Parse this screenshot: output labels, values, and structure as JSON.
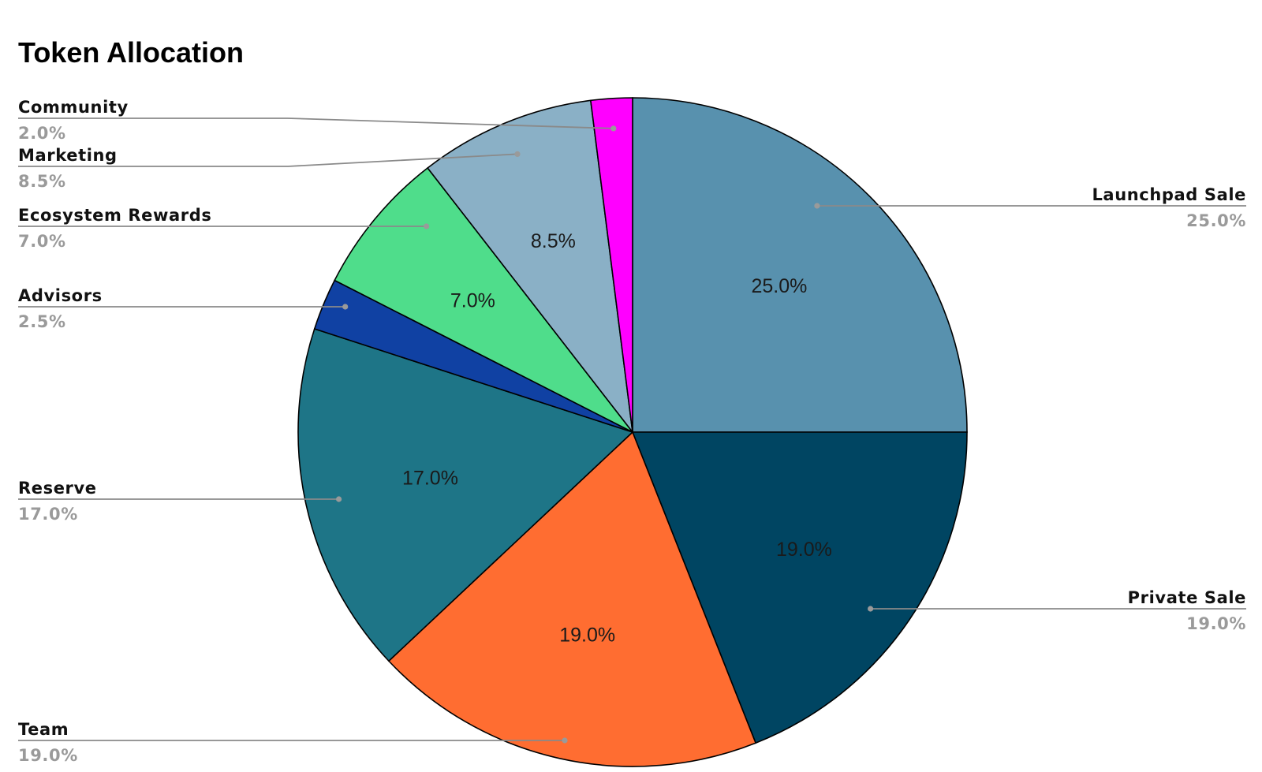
{
  "chart_data": {
    "type": "pie",
    "title": "Token Allocation",
    "slices": [
      {
        "label": "Launchpad Sale",
        "value": 25.0,
        "value_label": "25.0%",
        "color": "#5891ae",
        "inside_label": "25.0%",
        "legend_side": "right"
      },
      {
        "label": "Private Sale",
        "value": 19.0,
        "value_label": "19.0%",
        "color": "#004562",
        "inside_label": "19.0%",
        "legend_side": "right"
      },
      {
        "label": "Team",
        "value": 19.0,
        "value_label": "19.0%",
        "color": "#ff6d31",
        "inside_label": "19.0%",
        "legend_side": "left"
      },
      {
        "label": "Reserve",
        "value": 17.0,
        "value_label": "17.0%",
        "color": "#1e7587",
        "inside_label": "17.0%",
        "legend_side": "left"
      },
      {
        "label": "Advisors",
        "value": 2.5,
        "value_label": "2.5%",
        "color": "#1041a3",
        "inside_label": "",
        "legend_side": "left"
      },
      {
        "label": "Ecosystem Rewards",
        "value": 7.0,
        "value_label": "7.0%",
        "color": "#4fdd8b",
        "inside_label": "7.0%",
        "legend_side": "left"
      },
      {
        "label": "Marketing",
        "value": 8.5,
        "value_label": "8.5%",
        "color": "#8ab0c6",
        "inside_label": "8.5%",
        "legend_side": "left"
      },
      {
        "label": "Community",
        "value": 2.0,
        "value_label": "2.0%",
        "color": "#ff00ff",
        "inside_label": "",
        "legend_side": "left"
      }
    ],
    "start_angle": "12 o'clock",
    "direction": "clockwise",
    "legend": "labels with leader lines on both sides"
  }
}
